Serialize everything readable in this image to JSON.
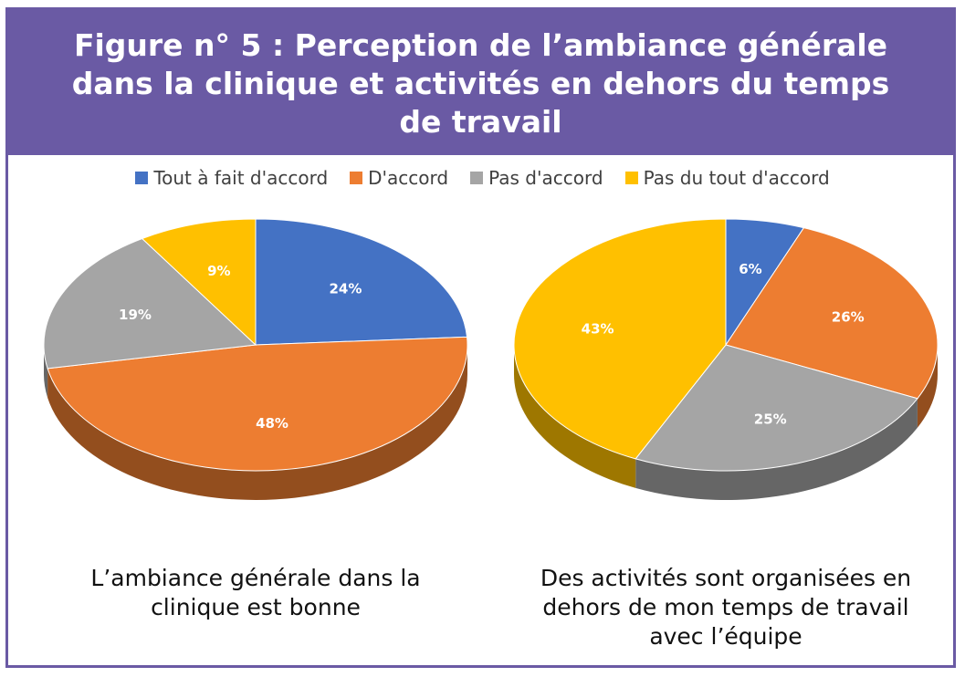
{
  "header": {
    "title_lines": [
      "Figure n° 5 : Perception de l’ambiance générale",
      "dans la clinique et activités en dehors du temps",
      "de travail"
    ]
  },
  "colors": {
    "header_bg": "#6a5aa4",
    "tout_a_fait": "#4472c4",
    "d_accord": "#ed7d31",
    "pas_d_accord": "#a5a5a5",
    "pas_du_tout": "#ffc000"
  },
  "chart_data": [
    {
      "type": "pie",
      "title": "L’ambiance générale dans la clinique est bonne",
      "caption_lines": [
        "L’ambiance générale dans la",
        "clinique est bonne"
      ],
      "legend": [
        "Tout à fait d'accord",
        "D'accord",
        "Pas d'accord",
        "Pas du tout d'accord"
      ],
      "slices": [
        {
          "name": "Tout à fait d'accord",
          "value": 24,
          "label": "24%"
        },
        {
          "name": "D'accord",
          "value": 48,
          "label": "48%"
        },
        {
          "name": "Pas d'accord",
          "value": 19,
          "label": "19%"
        },
        {
          "name": "Pas du tout d'accord",
          "value": 9,
          "label": "9%"
        }
      ]
    },
    {
      "type": "pie",
      "title": "Des activités sont organisées en dehors de mon temps de travail avec l’équipe",
      "caption_lines": [
        "Des activités sont organisées en",
        "dehors de mon temps de travail",
        "avec l’équipe"
      ],
      "legend": [
        "Tout à fait d'accord",
        "D'accord",
        "Pas d'accord",
        "Pas du tout d'accord"
      ],
      "slices": [
        {
          "name": "Tout à fait d'accord",
          "value": 6,
          "label": "6%"
        },
        {
          "name": "D'accord",
          "value": 26,
          "label": "26%"
        },
        {
          "name": "Pas d'accord",
          "value": 25,
          "label": "25%"
        },
        {
          "name": "Pas du tout d'accord",
          "value": 43,
          "label": "43%"
        }
      ]
    }
  ]
}
